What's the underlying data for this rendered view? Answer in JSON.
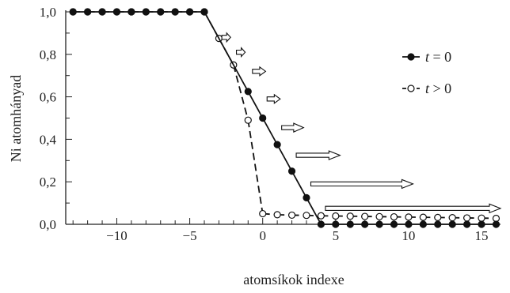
{
  "chart_data": {
    "type": "line",
    "xlabel": "atomsíkok indexe",
    "ylabel": "Ni atomhányad",
    "xlim": [
      -13.5,
      16.3
    ],
    "ylim": [
      0,
      1.0
    ],
    "xticks": [
      -10,
      -5,
      0,
      5,
      10,
      15
    ],
    "xtick_labels": [
      "−10",
      "−5",
      "0",
      "5",
      "10",
      "15"
    ],
    "yticks": [
      0,
      0.2,
      0.4,
      0.6,
      0.8,
      1.0
    ],
    "ytick_labels": [
      "0,0",
      "0,2",
      "0,4",
      "0,6",
      "0,8",
      "1,0"
    ],
    "grid": false,
    "legend_position": "right",
    "series": [
      {
        "name": "t = 0",
        "legend_var": "t",
        "legend_rel": " = 0",
        "style": "solid",
        "marker": "filled-circle",
        "points": [
          [
            -13,
            1.0
          ],
          [
            -12,
            1.0
          ],
          [
            -11,
            1.0
          ],
          [
            -10,
            1.0
          ],
          [
            -9,
            1.0
          ],
          [
            -8,
            1.0
          ],
          [
            -7,
            1.0
          ],
          [
            -6,
            1.0
          ],
          [
            -5,
            1.0
          ],
          [
            -4,
            1.0
          ],
          [
            -1,
            0.625
          ],
          [
            0,
            0.5
          ],
          [
            1,
            0.375
          ],
          [
            2,
            0.25
          ],
          [
            3,
            0.125
          ],
          [
            4,
            0.0
          ],
          [
            5,
            0.0
          ],
          [
            6,
            0.0
          ],
          [
            7,
            0.0
          ],
          [
            8,
            0.0
          ],
          [
            9,
            0.0
          ],
          [
            10,
            0.0
          ],
          [
            11,
            0.0
          ],
          [
            12,
            0.0
          ],
          [
            13,
            0.0
          ],
          [
            14,
            0.0
          ],
          [
            15,
            0.0
          ],
          [
            16,
            0.0
          ]
        ]
      },
      {
        "name": "t > 0",
        "legend_var": "t",
        "legend_rel": " > 0",
        "style": "dashed",
        "marker": "open-circle",
        "points": [
          [
            -13,
            1.0
          ],
          [
            -12,
            1.0
          ],
          [
            -11,
            1.0
          ],
          [
            -10,
            1.0
          ],
          [
            -9,
            1.0
          ],
          [
            -8,
            1.0
          ],
          [
            -7,
            1.0
          ],
          [
            -6,
            1.0
          ],
          [
            -5,
            1.0
          ],
          [
            -4,
            1.0
          ],
          [
            -3,
            0.875
          ],
          [
            -2,
            0.75
          ],
          [
            -1,
            0.49
          ],
          [
            0,
            0.05
          ],
          [
            1,
            0.045
          ],
          [
            2,
            0.043
          ],
          [
            3,
            0.042
          ],
          [
            4,
            0.04
          ],
          [
            5,
            0.039
          ],
          [
            6,
            0.038
          ],
          [
            7,
            0.037
          ],
          [
            8,
            0.036
          ],
          [
            9,
            0.035
          ],
          [
            10,
            0.034
          ],
          [
            11,
            0.033
          ],
          [
            12,
            0.032
          ],
          [
            13,
            0.031
          ],
          [
            14,
            0.03
          ],
          [
            15,
            0.029
          ],
          [
            16,
            0.028
          ]
        ]
      }
    ],
    "arrows": [
      {
        "x0": -2.8,
        "x1": -2.2,
        "y": 0.88
      },
      {
        "x0": -1.8,
        "x1": -1.2,
        "y": 0.81
      },
      {
        "x0": -0.7,
        "x1": 0.2,
        "y": 0.72
      },
      {
        "x0": 0.3,
        "x1": 1.2,
        "y": 0.59
      },
      {
        "x0": 1.3,
        "x1": 2.8,
        "y": 0.455
      },
      {
        "x0": 2.3,
        "x1": 5.3,
        "y": 0.325
      },
      {
        "x0": 3.3,
        "x1": 10.3,
        "y": 0.19
      },
      {
        "x0": 4.3,
        "x1": 16.3,
        "y": 0.075
      }
    ]
  }
}
